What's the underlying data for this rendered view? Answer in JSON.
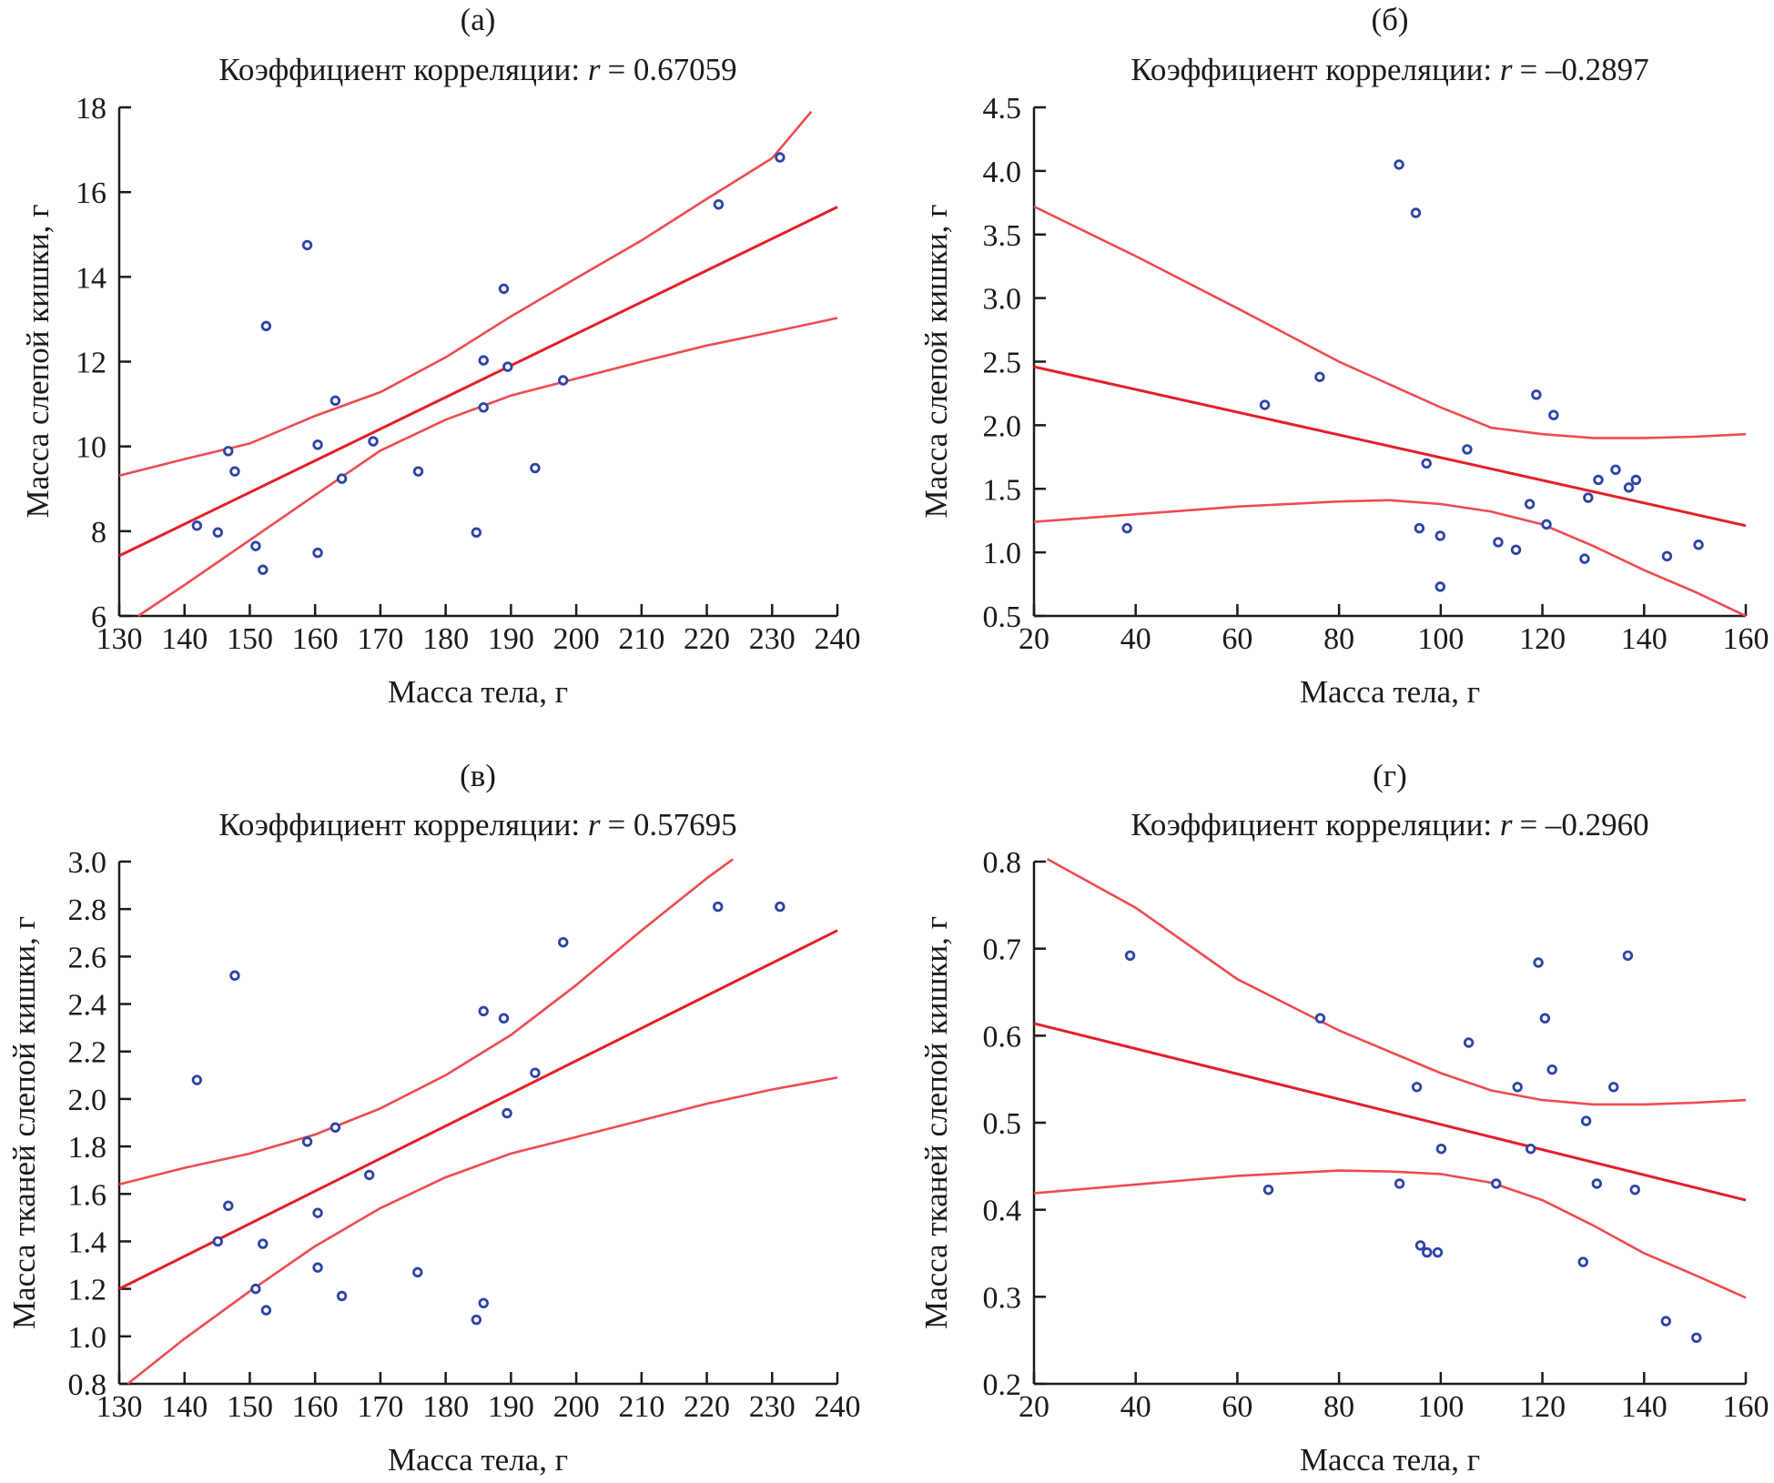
{
  "chart_data": [
    {
      "type": "scatter",
      "panel_label": "(а)",
      "title_prefix": "Коэффициент корреляции: ",
      "r_symbol": "r",
      "r_value": "= 0.67059",
      "xlabel": "Масса тела, г",
      "ylabel": "Масса слепой кишки, г",
      "xlim": [
        130,
        240
      ],
      "ylim": [
        6,
        18
      ],
      "xticks": [
        130,
        140,
        150,
        160,
        170,
        180,
        190,
        200,
        210,
        220,
        230,
        240
      ],
      "yticks": [
        6,
        8,
        10,
        12,
        14,
        16,
        18
      ],
      "ytick_decimals": 0,
      "points": {
        "x": [
          141.9,
          145.1,
          146.7,
          147.7,
          150.9,
          152.0,
          152.5,
          158.8,
          160.4,
          160.4,
          163.1,
          164.1,
          168.9,
          175.8,
          184.7,
          185.8,
          185.8,
          188.9,
          189.5,
          193.7,
          198.0,
          221.8,
          231.2
        ],
        "y": [
          8.13,
          7.97,
          9.89,
          9.41,
          7.65,
          7.09,
          12.84,
          14.75,
          10.04,
          7.49,
          11.08,
          9.24,
          10.12,
          9.41,
          7.97,
          12.03,
          10.92,
          13.72,
          11.88,
          9.49,
          11.56,
          15.71,
          16.82
        ]
      },
      "regression": {
        "x": [
          130,
          240
        ],
        "y": [
          7.42,
          15.65
        ]
      },
      "ci_upper": {
        "x": [
          130,
          140,
          150,
          160,
          170,
          180,
          190,
          200,
          210,
          220,
          230,
          236
        ],
        "y": [
          9.31,
          9.7,
          10.07,
          10.72,
          11.28,
          12.1,
          13.07,
          13.97,
          14.86,
          15.84,
          16.8,
          17.9
        ]
      },
      "ci_lower": {
        "x": [
          132.9,
          140,
          150,
          160,
          170,
          180,
          190,
          200,
          210,
          220,
          230,
          240
        ],
        "y": [
          6.0,
          6.73,
          7.79,
          8.85,
          9.9,
          10.63,
          11.2,
          11.6,
          12.0,
          12.38,
          12.7,
          13.03
        ]
      },
      "colors": {
        "points": "#2c43a6",
        "regression": "#e41e26",
        "ci": "#ef4a4f"
      }
    },
    {
      "type": "scatter",
      "panel_label": "(б)",
      "title_prefix": "Коэффициент корреляции: ",
      "r_symbol": "r",
      "r_value": "= –0.2897",
      "xlabel": "Масса тела, г",
      "ylabel": "Масса слепой кишки, г",
      "xlim": [
        20,
        160
      ],
      "ylim": [
        0.5,
        4.5
      ],
      "xticks": [
        20,
        40,
        60,
        80,
        100,
        120,
        140,
        160
      ],
      "yticks": [
        0.5,
        1.0,
        1.5,
        2.0,
        2.5,
        3.0,
        3.5,
        4.0,
        4.5
      ],
      "ytick_decimals": 1,
      "points": {
        "x": [
          38.3,
          65.4,
          76.2,
          91.8,
          95.1,
          95.8,
          97.2,
          99.9,
          99.9,
          105.2,
          111.3,
          114.8,
          117.5,
          118.8,
          120.8,
          122.2,
          128.3,
          129.0,
          131.0,
          134.4,
          137.0,
          138.4,
          144.5,
          150.7
        ],
        "y": [
          1.19,
          2.16,
          2.38,
          4.05,
          3.67,
          1.19,
          1.7,
          1.13,
          0.73,
          1.81,
          1.08,
          1.02,
          1.38,
          2.24,
          1.22,
          2.08,
          0.95,
          1.43,
          1.57,
          1.65,
          1.51,
          1.57,
          0.97,
          1.06
        ]
      },
      "regression": {
        "x": [
          20,
          160
        ],
        "y": [
          2.46,
          1.21
        ]
      },
      "ci_upper": {
        "x": [
          20,
          40,
          60,
          80,
          100,
          110,
          120,
          130,
          140,
          150,
          160
        ],
        "y": [
          3.72,
          3.33,
          2.92,
          2.5,
          2.14,
          1.98,
          1.93,
          1.9,
          1.9,
          1.91,
          1.93
        ]
      },
      "ci_lower": {
        "x": [
          20,
          40,
          60,
          80,
          90,
          100,
          110,
          120,
          130,
          140,
          150,
          160
        ],
        "y": [
          1.24,
          1.3,
          1.36,
          1.4,
          1.41,
          1.38,
          1.32,
          1.22,
          1.05,
          0.86,
          0.69,
          0.5
        ]
      },
      "colors": {
        "points": "#2c43a6",
        "regression": "#e41e26",
        "ci": "#ef4a4f"
      }
    },
    {
      "type": "scatter",
      "panel_label": "(в)",
      "title_prefix": "Коэффициент корреляции: ",
      "r_symbol": "r",
      "r_value": "= 0.57695",
      "xlabel": "Масса тела, г",
      "ylabel": "Масса тканей слепой кишки, г",
      "xlim": [
        130,
        240
      ],
      "ylim": [
        0.8,
        3.0
      ],
      "xticks": [
        130,
        140,
        150,
        160,
        170,
        180,
        190,
        200,
        210,
        220,
        230,
        240
      ],
      "yticks": [
        0.8,
        1.0,
        1.2,
        1.4,
        1.6,
        1.8,
        2.0,
        2.2,
        2.4,
        2.6,
        2.8,
        3.0
      ],
      "ytick_decimals": 1,
      "points": {
        "x": [
          141.9,
          145.1,
          146.7,
          147.7,
          150.9,
          152.0,
          152.5,
          158.8,
          160.4,
          160.4,
          163.1,
          164.1,
          168.3,
          175.7,
          184.7,
          185.8,
          185.8,
          188.9,
          189.4,
          193.7,
          198.0,
          221.7,
          231.2
        ],
        "y": [
          2.08,
          1.4,
          1.55,
          2.52,
          1.2,
          1.39,
          1.11,
          1.82,
          1.52,
          1.29,
          1.88,
          1.17,
          1.68,
          1.27,
          1.07,
          2.37,
          1.14,
          2.34,
          1.94,
          2.11,
          2.66,
          2.81,
          2.81
        ]
      },
      "regression": {
        "x": [
          130,
          240
        ],
        "y": [
          1.2,
          2.71
        ]
      },
      "ci_upper": {
        "x": [
          130,
          140,
          150,
          160,
          170,
          180,
          190,
          200,
          210,
          220,
          224
        ],
        "y": [
          1.64,
          1.71,
          1.77,
          1.85,
          1.96,
          2.1,
          2.27,
          2.48,
          2.71,
          2.93,
          3.01
        ]
      },
      "ci_lower": {
        "x": [
          131.3,
          140,
          150,
          160,
          170,
          180,
          190,
          200,
          210,
          220,
          230,
          240
        ],
        "y": [
          0.8,
          0.99,
          1.19,
          1.38,
          1.54,
          1.67,
          1.77,
          1.84,
          1.91,
          1.98,
          2.04,
          2.09
        ]
      },
      "colors": {
        "points": "#2c43a6",
        "regression": "#e41e26",
        "ci": "#ef4a4f"
      }
    },
    {
      "type": "scatter",
      "panel_label": "(г)",
      "title_prefix": "Коэффициент корреляции: ",
      "r_symbol": "r",
      "r_value": "= –0.2960",
      "xlabel": "Масса тела, г",
      "ylabel": "Масса тканей слепой кишки, г",
      "xlim": [
        20,
        160
      ],
      "ylim": [
        0.2,
        0.8
      ],
      "xticks": [
        20,
        40,
        60,
        80,
        100,
        120,
        140,
        160
      ],
      "yticks": [
        0.2,
        0.3,
        0.4,
        0.5,
        0.6,
        0.7,
        0.8
      ],
      "ytick_decimals": 1,
      "points": {
        "x": [
          38.9,
          66.1,
          76.3,
          91.9,
          95.3,
          96.0,
          97.3,
          99.4,
          100.1,
          105.5,
          110.9,
          115.1,
          117.7,
          119.2,
          120.5,
          121.9,
          128.0,
          128.6,
          130.7,
          134.0,
          136.8,
          138.2,
          144.3,
          150.3
        ],
        "y": [
          0.692,
          0.423,
          0.62,
          0.43,
          0.541,
          0.359,
          0.351,
          0.351,
          0.47,
          0.592,
          0.43,
          0.541,
          0.47,
          0.684,
          0.62,
          0.561,
          0.34,
          0.502,
          0.43,
          0.541,
          0.692,
          0.423,
          0.272,
          0.253
        ]
      },
      "regression": {
        "x": [
          20,
          160
        ],
        "y": [
          0.614,
          0.411
        ]
      },
      "ci_upper": {
        "x": [
          22.6,
          40,
          60,
          80,
          100,
          110,
          120,
          130,
          140,
          150,
          160
        ],
        "y": [
          0.803,
          0.747,
          0.665,
          0.606,
          0.557,
          0.537,
          0.526,
          0.521,
          0.521,
          0.523,
          0.526
        ]
      },
      "ci_lower": {
        "x": [
          20,
          40,
          60,
          80,
          90,
          100,
          110,
          120,
          130,
          140,
          150,
          160
        ],
        "y": [
          0.419,
          0.429,
          0.439,
          0.445,
          0.444,
          0.441,
          0.431,
          0.411,
          0.382,
          0.35,
          0.325,
          0.299
        ]
      },
      "colors": {
        "points": "#2c43a6",
        "regression": "#e41e26",
        "ci": "#ef4a4f"
      }
    }
  ]
}
